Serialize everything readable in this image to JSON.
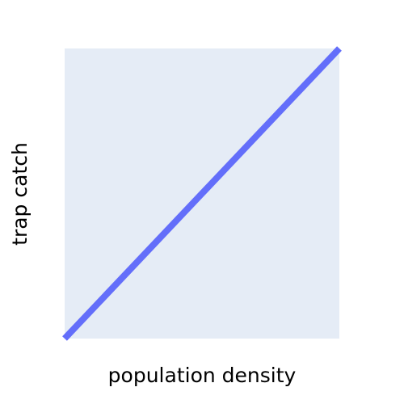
{
  "chart_data": {
    "type": "line",
    "title": "",
    "xlabel": "population density",
    "ylabel": "trap catch",
    "x": [
      0,
      1
    ],
    "series": [
      {
        "values": [
          0,
          1
        ],
        "color": "#636efa"
      }
    ],
    "xlim": [
      0,
      1
    ],
    "ylim": [
      0,
      1
    ],
    "grid": false,
    "x_tick_labels_shown": false,
    "y_tick_labels_shown": false,
    "plot_background": "#e5ecf6"
  }
}
